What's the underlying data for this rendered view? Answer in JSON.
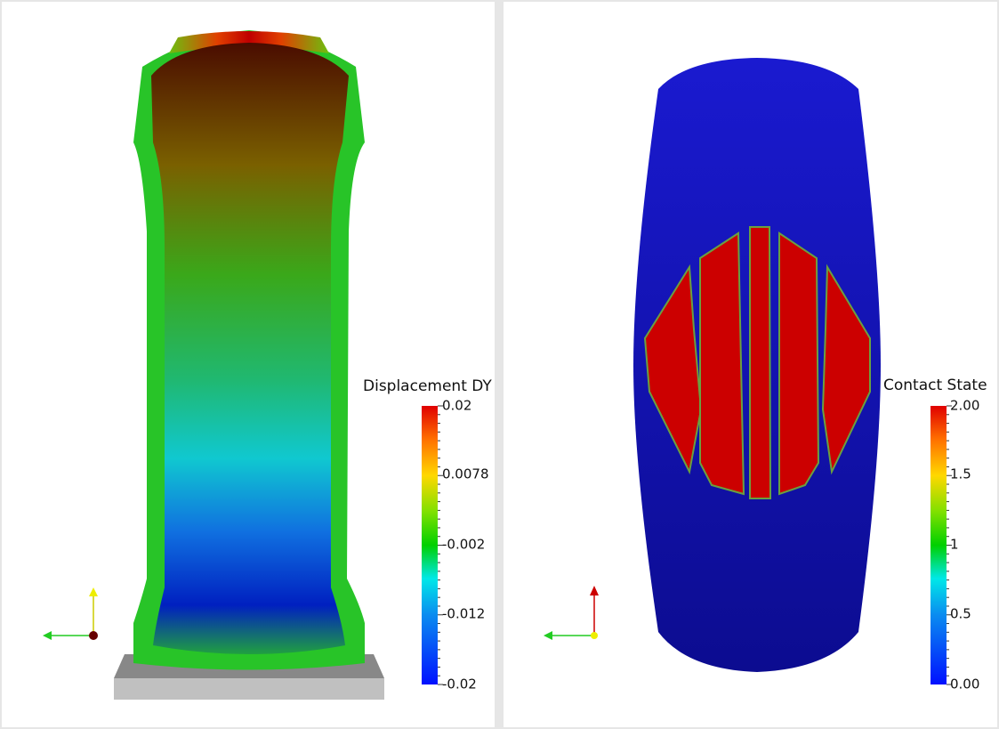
{
  "left_view": {
    "legend_title": "Displacement DY",
    "legend_labels": [
      "0.02",
      "0.0078",
      "-0.002",
      "-0.012",
      "-0.02"
    ]
  },
  "right_view": {
    "legend_title": "Contact State",
    "legend_labels": [
      "2.00",
      "1.5",
      "1",
      "0.5",
      "0.00"
    ]
  }
}
